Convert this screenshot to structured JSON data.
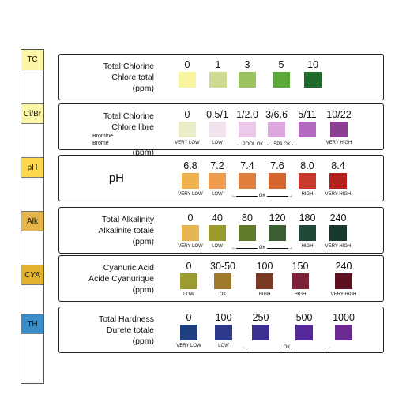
{
  "strip": {
    "pads": [
      {
        "label": "TC",
        "color": "#fcf7a7"
      },
      {
        "label": "",
        "color": "#ffffff"
      },
      {
        "label": "Ci/Br",
        "color": "#fcf7a7"
      },
      {
        "label": "",
        "color": "#ffffff"
      },
      {
        "label": "pH",
        "color": "#fcd84a"
      },
      {
        "label": "",
        "color": "#ffffff"
      },
      {
        "label": "Alk",
        "color": "#e3b54a"
      },
      {
        "label": "",
        "color": "#ffffff"
      },
      {
        "label": "CYA",
        "color": "#e2b12d"
      },
      {
        "label": "",
        "color": "#ffffff"
      },
      {
        "label": "TH",
        "color": "#3a8dc6"
      },
      {
        "label": "",
        "color": "#ffffff"
      }
    ]
  },
  "panels": [
    {
      "id": "tc",
      "labels": [
        "Total Chlorine",
        "Chlore total",
        "(ppm)"
      ],
      "swatches": [
        {
          "value": "0",
          "color": "#f8f4a1",
          "tag": ""
        },
        {
          "value": "1",
          "color": "#cddb92",
          "tag": ""
        },
        {
          "value": "3",
          "color": "#9ac25f",
          "tag": ""
        },
        {
          "value": "5",
          "color": "#5da83b",
          "tag": ""
        },
        {
          "value": "10",
          "color": "#1e6b2a",
          "tag": ""
        }
      ],
      "ranges": []
    },
    {
      "id": "fc",
      "labels": [
        "Total Chlorine",
        "Chlore libre",
        "Bromine",
        "Brome",
        "(ppm)"
      ],
      "swatches": [
        {
          "value": "0",
          "color": "#e9ecc6",
          "tag": "VERY LOW"
        },
        {
          "value": "0.5/1",
          "color": "#f1e2ee",
          "tag": "LOW"
        },
        {
          "value": "1/2.0",
          "color": "#ecc9eb",
          "tag": ""
        },
        {
          "value": "3/6.6",
          "color": "#dca7dd",
          "tag": ""
        },
        {
          "value": "5/11",
          "color": "#b56ac1",
          "tag": ""
        },
        {
          "value": "10/22",
          "color": "#8a3f95",
          "tag": "VERY HIGH"
        }
      ],
      "ranges": [
        {
          "text": "POOL OK"
        },
        {
          "text": "SPA OK"
        }
      ]
    },
    {
      "id": "ph",
      "labels": [
        "pH"
      ],
      "swatches": [
        {
          "value": "6.8",
          "color": "#f0b24e",
          "tag": "VERY LOW"
        },
        {
          "value": "7.2",
          "color": "#ee9b4e",
          "tag": "LOW"
        },
        {
          "value": "7.4",
          "color": "#e07e3e",
          "tag": ""
        },
        {
          "value": "7.6",
          "color": "#d5642f",
          "tag": ""
        },
        {
          "value": "8.0",
          "color": "#c83b2c",
          "tag": "HIGH"
        },
        {
          "value": "8.4",
          "color": "#b5221e",
          "tag": "VERY HIGH"
        }
      ],
      "ranges": [
        {
          "text": "OK"
        }
      ]
    },
    {
      "id": "alk",
      "labels": [
        "Total Alkalinity",
        "Alkalinite totalé",
        "(ppm)"
      ],
      "swatches": [
        {
          "value": "0",
          "color": "#e7b552",
          "tag": "VERY LOW"
        },
        {
          "value": "40",
          "color": "#9a9a2d",
          "tag": "LOW"
        },
        {
          "value": "80",
          "color": "#5d7b2b",
          "tag": ""
        },
        {
          "value": "120",
          "color": "#3c5e33",
          "tag": ""
        },
        {
          "value": "180",
          "color": "#1f4a37",
          "tag": "HIGH"
        },
        {
          "value": "240",
          "color": "#163a2d",
          "tag": "VERY HIGH"
        }
      ],
      "ranges": [
        {
          "text": "OK"
        }
      ]
    },
    {
      "id": "cya",
      "labels": [
        "Cyanuric Acid",
        "Acide Cyanurique",
        "(ppm)"
      ],
      "swatches": [
        {
          "value": "0",
          "color": "#9a9c31",
          "tag": "LOW"
        },
        {
          "value": "30-50",
          "color": "#a07a2c",
          "tag": "OK"
        },
        {
          "value": "100",
          "color": "#7b3a24",
          "tag": "HIGH"
        },
        {
          "value": "150",
          "color": "#7a2237",
          "tag": "HIGH"
        },
        {
          "value": "240",
          "color": "#5b1020",
          "tag": "VERY HIGH"
        }
      ],
      "ranges": []
    },
    {
      "id": "th",
      "labels": [
        "Total Hardness",
        "Durete totale",
        "(ppm)"
      ],
      "swatches": [
        {
          "value": "0",
          "color": "#1e3f7e",
          "tag": "VERY LOW"
        },
        {
          "value": "100",
          "color": "#2c3989",
          "tag": "LOW"
        },
        {
          "value": "250",
          "color": "#3b2f90",
          "tag": ""
        },
        {
          "value": "500",
          "color": "#55299a",
          "tag": ""
        },
        {
          "value": "1000",
          "color": "#6a2a92",
          "tag": ""
        }
      ],
      "ranges": [
        {
          "text": "OK"
        }
      ]
    }
  ]
}
